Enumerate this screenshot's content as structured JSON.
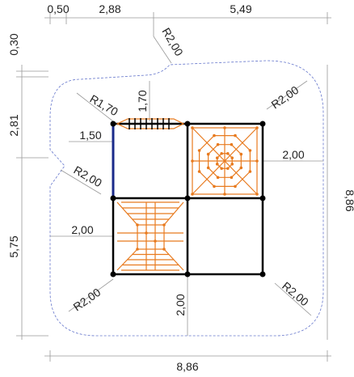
{
  "dimensions": {
    "top": [
      "0,50",
      "2,88",
      "5,49"
    ],
    "left": [
      "0,30",
      "2,81",
      "5,75"
    ],
    "bottom": "8,86",
    "right": "8,86",
    "radii": {
      "top": "R2,00",
      "top_left": "R1,70",
      "top_right": "R2,00",
      "left": "R2,00",
      "bottom_left": "R2,00",
      "bottom_right": "R2,00"
    },
    "inner": {
      "ladder_height": "1,70",
      "ladder_offset": "1,50",
      "right_offset": "2,00",
      "left_offset": "2,00",
      "bottom_offset": "2,00"
    }
  }
}
